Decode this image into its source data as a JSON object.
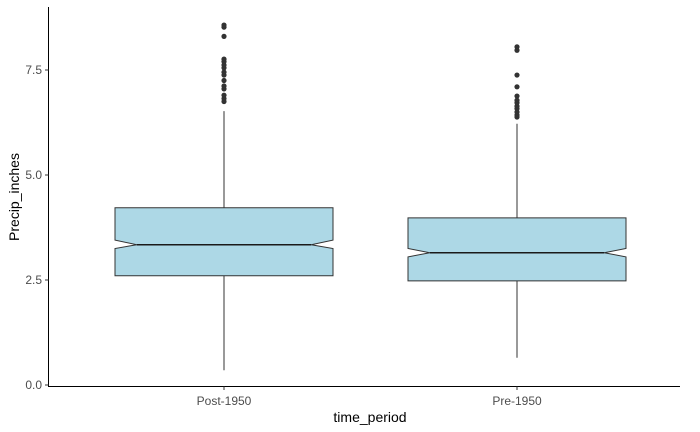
{
  "chart_data": {
    "type": "boxplot",
    "notched": true,
    "xlabel": "time_period",
    "ylabel": "Precip_inches",
    "categories": [
      "Post-1950",
      "Pre-1950"
    ],
    "yticks": [
      0.0,
      2.5,
      5.0,
      7.5
    ],
    "ytick_labels": [
      "0.0",
      "2.5",
      "5.0",
      "7.5"
    ],
    "ylim": [
      -0.05,
      9.0
    ],
    "grid": false,
    "legend": "none",
    "fill_color": "#add8e6",
    "line_color": "#333333",
    "boxes": [
      {
        "category": "Post-1950",
        "whisker_low": 0.35,
        "q1": 2.6,
        "notch_low": 3.25,
        "median": 3.34,
        "notch_high": 3.45,
        "q3": 4.22,
        "whisker_high": 6.52,
        "outliers": [
          6.75,
          6.82,
          6.9,
          7.05,
          7.12,
          7.25,
          7.38,
          7.45,
          7.55,
          7.62,
          7.7,
          7.76,
          8.3,
          8.52,
          8.57
        ]
      },
      {
        "category": "Pre-1950",
        "whisker_low": 0.65,
        "q1": 2.48,
        "notch_low": 3.05,
        "median": 3.15,
        "notch_high": 3.25,
        "q3": 3.98,
        "whisker_high": 6.22,
        "outliers": [
          6.38,
          6.43,
          6.5,
          6.58,
          6.64,
          6.72,
          6.78,
          6.88,
          7.1,
          7.38,
          7.97,
          8.05
        ]
      }
    ]
  }
}
